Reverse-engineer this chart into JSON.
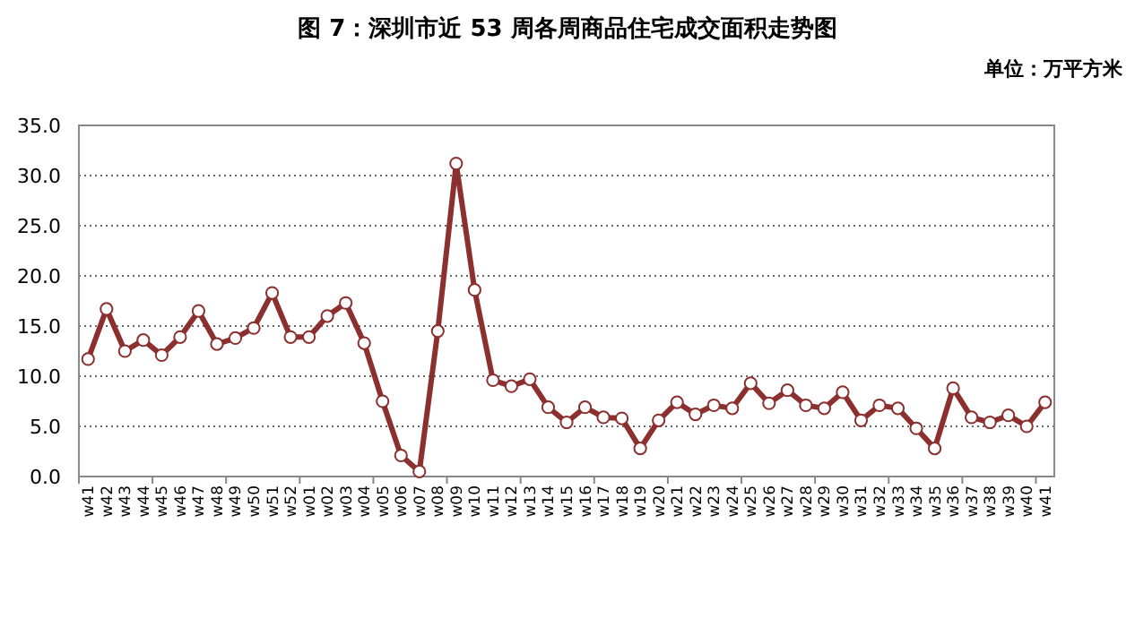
{
  "chart_data": {
    "type": "line",
    "title": "图 7：深圳市近 53 周各周商品住宅成交面积走势图",
    "annotations": [
      "单位：万平方米"
    ],
    "categories": [
      "w41",
      "w42",
      "w43",
      "w44",
      "w45",
      "w46",
      "w47",
      "w48",
      "w49",
      "w50",
      "w51",
      "w52",
      "w01",
      "w02",
      "w03",
      "w04",
      "w05",
      "w06",
      "w07",
      "w08",
      "w09",
      "w10",
      "w11",
      "w12",
      "w13",
      "w14",
      "w15",
      "w16",
      "w17",
      "w18",
      "w19",
      "w20",
      "w21",
      "w22",
      "w23",
      "w24",
      "w25",
      "w26",
      "w27",
      "w28",
      "w29",
      "w30",
      "w31",
      "w32",
      "w33",
      "w34",
      "w35",
      "w36",
      "w37",
      "w38",
      "w39",
      "w40",
      "w41"
    ],
    "series": [
      {
        "color": "#8b2f2f",
        "values": [
          11.7,
          16.7,
          12.5,
          13.6,
          12.1,
          13.9,
          16.5,
          13.2,
          13.8,
          14.8,
          18.3,
          13.9,
          13.9,
          16.0,
          17.3,
          13.3,
          7.5,
          2.1,
          0.5,
          14.5,
          31.2,
          18.6,
          9.6,
          9.0,
          9.7,
          6.9,
          5.4,
          6.9,
          5.9,
          5.8,
          2.8,
          5.6,
          7.4,
          6.2,
          7.1,
          6.8,
          9.3,
          7.3,
          8.6,
          7.1,
          6.8,
          8.4,
          5.6,
          7.1,
          6.8,
          4.8,
          2.8,
          8.8,
          5.9,
          5.4,
          6.1,
          5.0,
          7.4
        ]
      }
    ],
    "ylim": [
      0,
      35
    ],
    "yticks": [
      {
        "value": 0,
        "label": "0.0"
      },
      {
        "value": 5,
        "label": "5.0"
      },
      {
        "value": 10,
        "label": "10.0"
      },
      {
        "value": 15,
        "label": "15.0"
      },
      {
        "value": 20,
        "label": "20.0"
      },
      {
        "value": 25,
        "label": "25.0"
      },
      {
        "value": 30,
        "label": "30.0"
      },
      {
        "value": 35,
        "label": "35.0"
      }
    ],
    "grid": "y",
    "marker": "circle",
    "line_style": "solid"
  }
}
